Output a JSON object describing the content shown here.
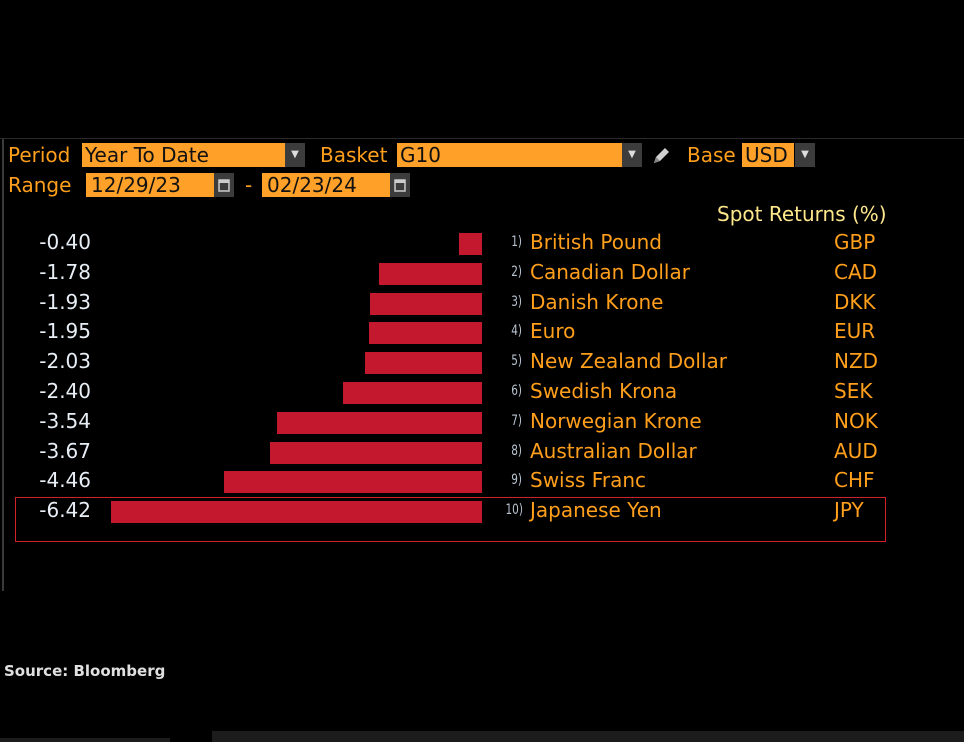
{
  "controls": {
    "period_label": "Period",
    "period_value": "Year To Date",
    "basket_label": "Basket",
    "basket_value": "G10",
    "base_label": "Base",
    "base_value": "USD",
    "range_label": "Range",
    "range_start": "12/29/23",
    "range_sep": "-",
    "range_end": "02/23/24"
  },
  "chart_data": {
    "type": "bar",
    "orientation": "horizontal",
    "title": "Spot Returns (%)",
    "categories": [
      "British Pound",
      "Canadian Dollar",
      "Danish Krone",
      "Euro",
      "New Zealand Dollar",
      "Swedish Krona",
      "Norwegian Krone",
      "Australian Dollar",
      "Swiss Franc",
      "Japanese Yen"
    ],
    "codes": [
      "GBP",
      "CAD",
      "DKK",
      "EUR",
      "NZD",
      "SEK",
      "NOK",
      "AUD",
      "CHF",
      "JPY"
    ],
    "ranks": [
      "1)",
      "2)",
      "3)",
      "4)",
      "5)",
      "6)",
      "7)",
      "8)",
      "9)",
      "10)"
    ],
    "values": [
      -0.4,
      -1.78,
      -1.93,
      -1.95,
      -2.03,
      -2.4,
      -3.54,
      -3.67,
      -4.46,
      -6.42
    ],
    "value_labels": [
      "-0.40",
      "-1.78",
      "-1.93",
      "-1.95",
      "-2.03",
      "-2.40",
      "-3.54",
      "-3.67",
      "-4.46",
      "-6.42"
    ],
    "highlighted": "Japanese Yen",
    "bar_color": "#c4182f"
  },
  "footer": {
    "source": "Source: Bloomberg"
  }
}
